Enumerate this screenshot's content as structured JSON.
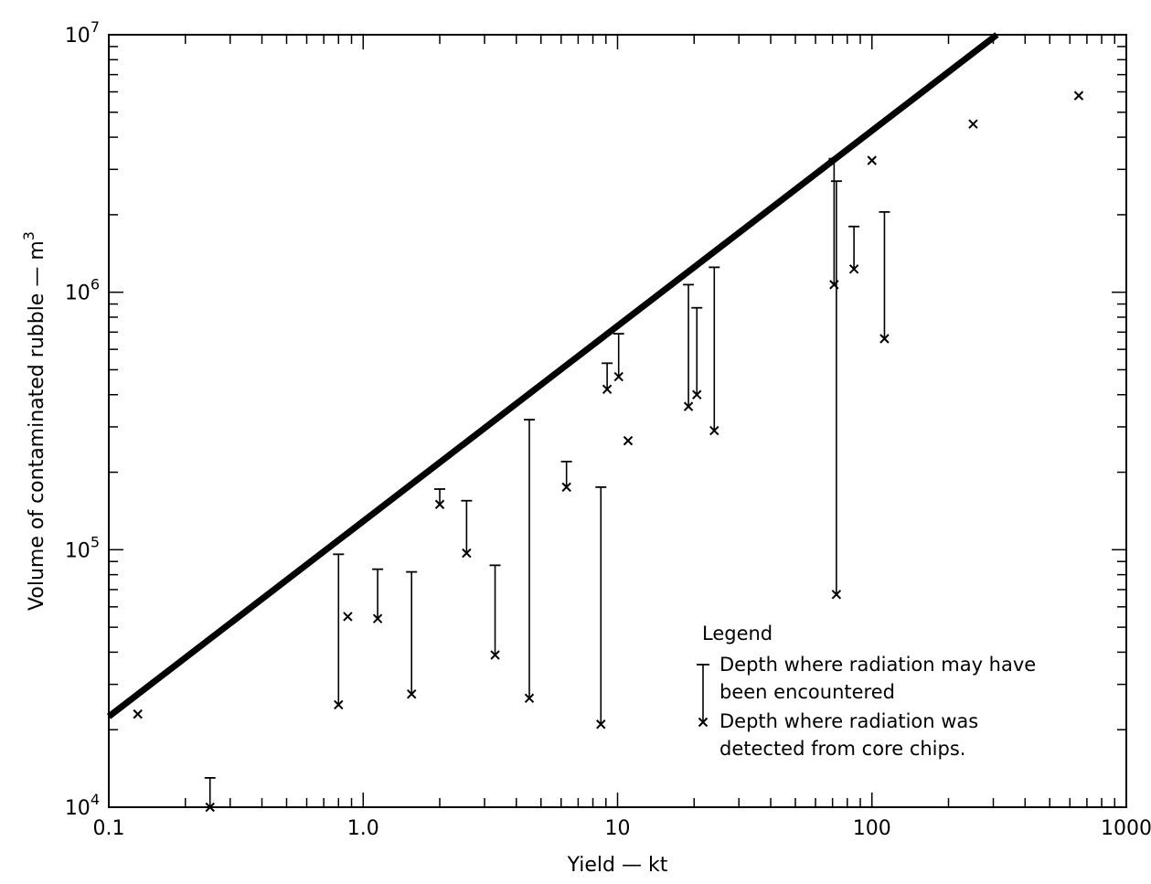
{
  "chart_data": {
    "type": "scatter",
    "title": "",
    "xlabel": "Yield — kt",
    "ylabel": "Volume of contaminated rubble — m",
    "ylabel_superscript": "3",
    "x_scale": "log",
    "y_scale": "log",
    "xlim": [
      0.1,
      1000
    ],
    "ylim": [
      10000,
      10000000
    ],
    "grid": false,
    "x_ticks": [
      {
        "value": 0.1,
        "label": "0.1"
      },
      {
        "value": 1,
        "label": "1.0"
      },
      {
        "value": 10,
        "label": "10"
      },
      {
        "value": 100,
        "label": "100"
      },
      {
        "value": 1000,
        "label": "1000"
      }
    ],
    "y_ticks": [
      {
        "value": 10000,
        "base": "10",
        "exp": "4"
      },
      {
        "value": 100000,
        "base": "10",
        "exp": "5"
      },
      {
        "value": 1000000,
        "base": "10",
        "exp": "6"
      },
      {
        "value": 10000000,
        "base": "10",
        "exp": "7"
      }
    ],
    "fit_line": {
      "x": [
        0.1,
        310
      ],
      "y": [
        22500,
        10000000
      ]
    },
    "range_bars": [
      {
        "x": 0.25,
        "top": 13000,
        "bottom": 10000
      },
      {
        "x": 0.8,
        "top": 96000,
        "bottom": 25000
      },
      {
        "x": 1.14,
        "top": 84000,
        "bottom": 54000
      },
      {
        "x": 1.55,
        "top": 82000,
        "bottom": 27500
      },
      {
        "x": 2.0,
        "top": 172000,
        "bottom": 150000
      },
      {
        "x": 2.55,
        "top": 155000,
        "bottom": 97000
      },
      {
        "x": 3.3,
        "top": 87000,
        "bottom": 39000
      },
      {
        "x": 4.5,
        "top": 320000,
        "bottom": 26500
      },
      {
        "x": 6.3,
        "top": 220000,
        "bottom": 175000
      },
      {
        "x": 8.6,
        "top": 175000,
        "bottom": 21000
      },
      {
        "x": 9.1,
        "top": 530000,
        "bottom": 420000
      },
      {
        "x": 10.1,
        "top": 690000,
        "bottom": 470000
      },
      {
        "x": 19.0,
        "top": 1070000,
        "bottom": 360000
      },
      {
        "x": 20.5,
        "top": 870000,
        "bottom": 400000
      },
      {
        "x": 24.0,
        "top": 1250000,
        "bottom": 290000
      },
      {
        "x": 71.0,
        "top": 3300000,
        "bottom": 1070000
      },
      {
        "x": 72.5,
        "top": 2700000,
        "bottom": 67000
      },
      {
        "x": 85.0,
        "top": 1800000,
        "bottom": 1230000
      },
      {
        "x": 112.0,
        "top": 2050000,
        "bottom": 660000
      }
    ],
    "points": [
      {
        "x": 0.13,
        "y": 23000
      },
      {
        "x": 0.25,
        "y": 10000
      },
      {
        "x": 0.8,
        "y": 25000
      },
      {
        "x": 0.87,
        "y": 55000
      },
      {
        "x": 1.14,
        "y": 54000
      },
      {
        "x": 1.55,
        "y": 27500
      },
      {
        "x": 2.0,
        "y": 150000
      },
      {
        "x": 2.55,
        "y": 97000
      },
      {
        "x": 3.3,
        "y": 39000
      },
      {
        "x": 4.5,
        "y": 26500
      },
      {
        "x": 6.3,
        "y": 175000
      },
      {
        "x": 8.6,
        "y": 21000
      },
      {
        "x": 9.1,
        "y": 420000
      },
      {
        "x": 10.1,
        "y": 470000
      },
      {
        "x": 11.0,
        "y": 265000
      },
      {
        "x": 19.0,
        "y": 360000
      },
      {
        "x": 20.5,
        "y": 400000
      },
      {
        "x": 24.0,
        "y": 290000
      },
      {
        "x": 71.0,
        "y": 1070000
      },
      {
        "x": 72.5,
        "y": 67000
      },
      {
        "x": 85.0,
        "y": 1230000
      },
      {
        "x": 100.0,
        "y": 3250000
      },
      {
        "x": 112.0,
        "y": 660000
      },
      {
        "x": 250.0,
        "y": 4500000
      },
      {
        "x": 650.0,
        "y": 5800000
      }
    ],
    "legend": {
      "title": "Legend",
      "line1": "Depth where radiation may have",
      "line2": "been encountered",
      "line3": "Depth where radiation was",
      "line4": "detected from core chips."
    }
  }
}
